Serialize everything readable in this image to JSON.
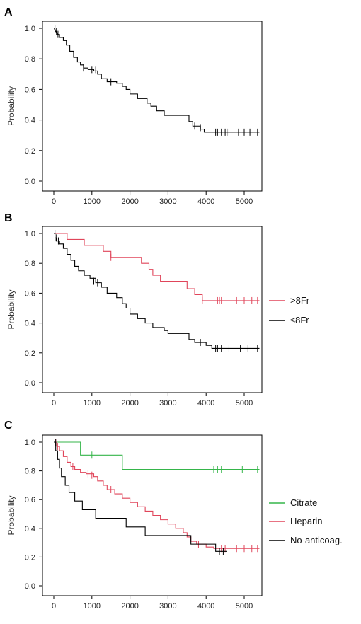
{
  "figure": {
    "panels": [
      {
        "label": "A",
        "ylabel": "Probability",
        "legend": [],
        "chart_data": {
          "type": "line",
          "xlim": [
            0,
            5500
          ],
          "ylim": [
            0,
            1.0
          ],
          "xticks": [
            0,
            1000,
            2000,
            3000,
            4000,
            5000
          ],
          "yticks": [
            0.0,
            0.2,
            0.4,
            0.6,
            0.8,
            1.0
          ],
          "grid": false,
          "series": [
            {
              "name": "",
              "color": "#000000",
              "steps": [
                [
                  0,
                  1.0
                ],
                [
                  20,
                  0.99
                ],
                [
                  40,
                  0.98
                ],
                [
                  60,
                  0.97
                ],
                [
                  90,
                  0.96
                ],
                [
                  150,
                  0.94
                ],
                [
                  250,
                  0.92
                ],
                [
                  330,
                  0.89
                ],
                [
                  420,
                  0.85
                ],
                [
                  520,
                  0.81
                ],
                [
                  620,
                  0.78
                ],
                [
                  700,
                  0.76
                ],
                [
                  780,
                  0.74
                ],
                [
                  900,
                  0.73
                ],
                [
                  1050,
                  0.72
                ],
                [
                  1150,
                  0.7
                ],
                [
                  1250,
                  0.67
                ],
                [
                  1400,
                  0.65
                ],
                [
                  1650,
                  0.64
                ],
                [
                  1800,
                  0.62
                ],
                [
                  1900,
                  0.6
                ],
                [
                  2000,
                  0.57
                ],
                [
                  2200,
                  0.54
                ],
                [
                  2450,
                  0.51
                ],
                [
                  2550,
                  0.49
                ],
                [
                  2700,
                  0.46
                ],
                [
                  2900,
                  0.43
                ],
                [
                  3550,
                  0.39
                ],
                [
                  3650,
                  0.36
                ],
                [
                  3850,
                  0.34
                ],
                [
                  3950,
                  0.32
                ],
                [
                  5400,
                  0.32
                ]
              ],
              "censored": [
                [
                  30,
                  1.0
                ],
                [
                  70,
                  0.98
                ],
                [
                  110,
                  0.96
                ],
                [
                  780,
                  0.74
                ],
                [
                  1000,
                  0.73
                ],
                [
                  1100,
                  0.73
                ],
                [
                  1500,
                  0.65
                ],
                [
                  3700,
                  0.36
                ],
                [
                  3850,
                  0.35
                ],
                [
                  4250,
                  0.32
                ],
                [
                  4300,
                  0.32
                ],
                [
                  4400,
                  0.32
                ],
                [
                  4500,
                  0.32
                ],
                [
                  4550,
                  0.32
                ],
                [
                  4600,
                  0.32
                ],
                [
                  4850,
                  0.32
                ],
                [
                  5000,
                  0.32
                ],
                [
                  5150,
                  0.32
                ],
                [
                  5350,
                  0.32
                ]
              ]
            }
          ]
        }
      },
      {
        "label": "B",
        "ylabel": "Probability",
        "legend": [
          {
            "label": ">8Fr",
            "color": "#e0455a"
          },
          {
            "label": "≤8Fr",
            "color": "#000000"
          }
        ],
        "chart_data": {
          "type": "line",
          "xlim": [
            0,
            5500
          ],
          "ylim": [
            0,
            1.0
          ],
          "xticks": [
            0,
            1000,
            2000,
            3000,
            4000,
            5000
          ],
          "yticks": [
            0.0,
            0.2,
            0.4,
            0.6,
            0.8,
            1.0
          ],
          "grid": false,
          "series": [
            {
              "name": ">8Fr",
              "color": "#e0455a",
              "steps": [
                [
                  0,
                  1.0
                ],
                [
                  350,
                  0.96
                ],
                [
                  800,
                  0.92
                ],
                [
                  1300,
                  0.88
                ],
                [
                  1500,
                  0.84
                ],
                [
                  2300,
                  0.8
                ],
                [
                  2500,
                  0.76
                ],
                [
                  2600,
                  0.72
                ],
                [
                  2800,
                  0.68
                ],
                [
                  3500,
                  0.63
                ],
                [
                  3700,
                  0.59
                ],
                [
                  3900,
                  0.55
                ],
                [
                  5400,
                  0.55
                ]
              ],
              "censored": [
                [
                  1500,
                  0.84
                ],
                [
                  3900,
                  0.55
                ],
                [
                  4300,
                  0.55
                ],
                [
                  4350,
                  0.55
                ],
                [
                  4400,
                  0.55
                ],
                [
                  4800,
                  0.55
                ],
                [
                  5000,
                  0.55
                ],
                [
                  5200,
                  0.55
                ],
                [
                  5350,
                  0.55
                ]
              ]
            },
            {
              "name": "≤8Fr",
              "color": "#000000",
              "steps": [
                [
                  0,
                  1.0
                ],
                [
                  30,
                  0.97
                ],
                [
                  60,
                  0.95
                ],
                [
                  150,
                  0.93
                ],
                [
                  250,
                  0.9
                ],
                [
                  350,
                  0.86
                ],
                [
                  450,
                  0.82
                ],
                [
                  550,
                  0.78
                ],
                [
                  650,
                  0.75
                ],
                [
                  800,
                  0.72
                ],
                [
                  950,
                  0.7
                ],
                [
                  1100,
                  0.67
                ],
                [
                  1250,
                  0.64
                ],
                [
                  1400,
                  0.6
                ],
                [
                  1650,
                  0.57
                ],
                [
                  1800,
                  0.53
                ],
                [
                  1900,
                  0.5
                ],
                [
                  2000,
                  0.46
                ],
                [
                  2200,
                  0.43
                ],
                [
                  2400,
                  0.4
                ],
                [
                  2600,
                  0.37
                ],
                [
                  2900,
                  0.35
                ],
                [
                  3000,
                  0.33
                ],
                [
                  3550,
                  0.29
                ],
                [
                  3700,
                  0.27
                ],
                [
                  4000,
                  0.25
                ],
                [
                  4150,
                  0.23
                ],
                [
                  5400,
                  0.23
                ]
              ],
              "censored": [
                [
                  30,
                  1.0
                ],
                [
                  70,
                  0.97
                ],
                [
                  120,
                  0.95
                ],
                [
                  1050,
                  0.68
                ],
                [
                  1150,
                  0.67
                ],
                [
                  3850,
                  0.27
                ],
                [
                  4250,
                  0.23
                ],
                [
                  4300,
                  0.23
                ],
                [
                  4400,
                  0.23
                ],
                [
                  4600,
                  0.23
                ],
                [
                  4900,
                  0.23
                ],
                [
                  5100,
                  0.23
                ],
                [
                  5350,
                  0.23
                ]
              ]
            }
          ]
        }
      },
      {
        "label": "C",
        "ylabel": "Probability",
        "legend": [
          {
            "label": "Citrate",
            "color": "#35b54a"
          },
          {
            "label": "Heparin",
            "color": "#e0455a"
          },
          {
            "label": "No-anticoag.",
            "color": "#000000"
          }
        ],
        "chart_data": {
          "type": "line",
          "xlim": [
            0,
            5500
          ],
          "ylim": [
            0,
            1.0
          ],
          "xticks": [
            0,
            1000,
            2000,
            3000,
            4000,
            5000
          ],
          "yticks": [
            0.0,
            0.2,
            0.4,
            0.6,
            0.8,
            1.0
          ],
          "grid": false,
          "series": [
            {
              "name": "Citrate",
              "color": "#35b54a",
              "steps": [
                [
                  0,
                  1.0
                ],
                [
                  700,
                  0.91
                ],
                [
                  1800,
                  0.81
                ],
                [
                  5400,
                  0.81
                ]
              ],
              "censored": [
                [
                  1000,
                  0.91
                ],
                [
                  4200,
                  0.81
                ],
                [
                  4300,
                  0.81
                ],
                [
                  4400,
                  0.81
                ],
                [
                  4950,
                  0.81
                ],
                [
                  5350,
                  0.81
                ]
              ]
            },
            {
              "name": "Heparin",
              "color": "#e0455a",
              "steps": [
                [
                  0,
                  1.0
                ],
                [
                  80,
                  0.97
                ],
                [
                  150,
                  0.94
                ],
                [
                  250,
                  0.9
                ],
                [
                  350,
                  0.86
                ],
                [
                  450,
                  0.83
                ],
                [
                  550,
                  0.81
                ],
                [
                  700,
                  0.79
                ],
                [
                  850,
                  0.78
                ],
                [
                  1050,
                  0.76
                ],
                [
                  1150,
                  0.73
                ],
                [
                  1300,
                  0.7
                ],
                [
                  1400,
                  0.67
                ],
                [
                  1600,
                  0.64
                ],
                [
                  1800,
                  0.61
                ],
                [
                  2000,
                  0.58
                ],
                [
                  2200,
                  0.55
                ],
                [
                  2400,
                  0.52
                ],
                [
                  2600,
                  0.49
                ],
                [
                  2800,
                  0.46
                ],
                [
                  3000,
                  0.43
                ],
                [
                  3200,
                  0.4
                ],
                [
                  3400,
                  0.37
                ],
                [
                  3500,
                  0.34
                ],
                [
                  3600,
                  0.31
                ],
                [
                  3750,
                  0.29
                ],
                [
                  4000,
                  0.27
                ],
                [
                  4200,
                  0.26
                ],
                [
                  5400,
                  0.26
                ]
              ],
              "censored": [
                [
                  50,
                  1.0
                ],
                [
                  100,
                  0.97
                ],
                [
                  500,
                  0.83
                ],
                [
                  900,
                  0.78
                ],
                [
                  1000,
                  0.77
                ],
                [
                  1500,
                  0.67
                ],
                [
                  3800,
                  0.29
                ],
                [
                  4400,
                  0.26
                ],
                [
                  4500,
                  0.26
                ],
                [
                  4800,
                  0.26
                ],
                [
                  5000,
                  0.26
                ],
                [
                  5200,
                  0.26
                ],
                [
                  5350,
                  0.26
                ]
              ]
            },
            {
              "name": "No-anticoag.",
              "color": "#000000",
              "steps": [
                [
                  0,
                  1.0
                ],
                [
                  50,
                  0.94
                ],
                [
                  100,
                  0.88
                ],
                [
                  150,
                  0.82
                ],
                [
                  200,
                  0.76
                ],
                [
                  300,
                  0.7
                ],
                [
                  400,
                  0.65
                ],
                [
                  550,
                  0.59
                ],
                [
                  750,
                  0.53
                ],
                [
                  1100,
                  0.47
                ],
                [
                  1900,
                  0.41
                ],
                [
                  2400,
                  0.35
                ],
                [
                  3600,
                  0.29
                ],
                [
                  4250,
                  0.24
                ],
                [
                  4550,
                  0.24
                ]
              ],
              "censored": [
                [
                  50,
                  1.0
                ],
                [
                  4350,
                  0.24
                ],
                [
                  4450,
                  0.24
                ]
              ]
            }
          ]
        }
      }
    ]
  }
}
